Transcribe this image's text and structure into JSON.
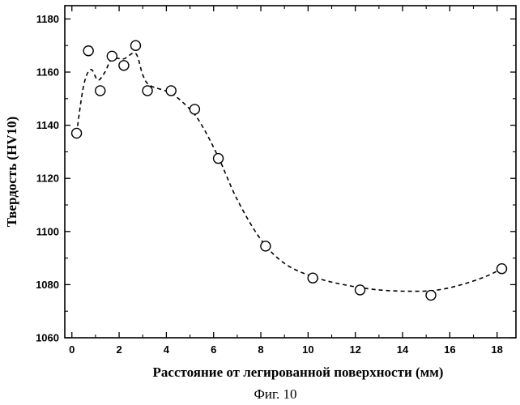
{
  "caption": "Фиг. 10",
  "chart_data": {
    "type": "scatter",
    "xlabel": "Расстояние от легированной поверхности (мм)",
    "ylabel": "Твердость (HV10)",
    "xlim": [
      -0.3,
      18.8
    ],
    "ylim": [
      1060,
      1185
    ],
    "xticks": [
      0,
      2,
      4,
      6,
      8,
      10,
      12,
      14,
      16,
      18
    ],
    "yticks": [
      1060,
      1080,
      1100,
      1120,
      1140,
      1160,
      1180
    ],
    "grid": false,
    "points": [
      {
        "x": 0.2,
        "y": 1137
      },
      {
        "x": 0.7,
        "y": 1168
      },
      {
        "x": 1.2,
        "y": 1153
      },
      {
        "x": 1.7,
        "y": 1166
      },
      {
        "x": 2.2,
        "y": 1162.5
      },
      {
        "x": 2.7,
        "y": 1170
      },
      {
        "x": 3.2,
        "y": 1153
      },
      {
        "x": 4.2,
        "y": 1153
      },
      {
        "x": 5.2,
        "y": 1146
      },
      {
        "x": 6.2,
        "y": 1127.5
      },
      {
        "x": 8.2,
        "y": 1094.5
      },
      {
        "x": 10.2,
        "y": 1082.5
      },
      {
        "x": 12.2,
        "y": 1078
      },
      {
        "x": 15.2,
        "y": 1076
      },
      {
        "x": 18.2,
        "y": 1086
      }
    ],
    "fit_curve": [
      [
        0.2,
        1137
      ],
      [
        0.5,
        1155
      ],
      [
        0.8,
        1161
      ],
      [
        1.1,
        1157
      ],
      [
        1.4,
        1160
      ],
      [
        1.7,
        1165
      ],
      [
        2.2,
        1165
      ],
      [
        2.7,
        1167
      ],
      [
        3.0,
        1159
      ],
      [
        3.3,
        1155
      ],
      [
        4.2,
        1152
      ],
      [
        5.0,
        1146
      ],
      [
        5.5,
        1140
      ],
      [
        6.2,
        1128
      ],
      [
        7.0,
        1112
      ],
      [
        8.0,
        1097
      ],
      [
        9.0,
        1088
      ],
      [
        10.2,
        1083
      ],
      [
        11.5,
        1080
      ],
      [
        13.0,
        1078
      ],
      [
        14.5,
        1077.5
      ],
      [
        15.5,
        1078
      ],
      [
        16.5,
        1080
      ],
      [
        17.5,
        1083
      ],
      [
        18.2,
        1086
      ]
    ]
  }
}
